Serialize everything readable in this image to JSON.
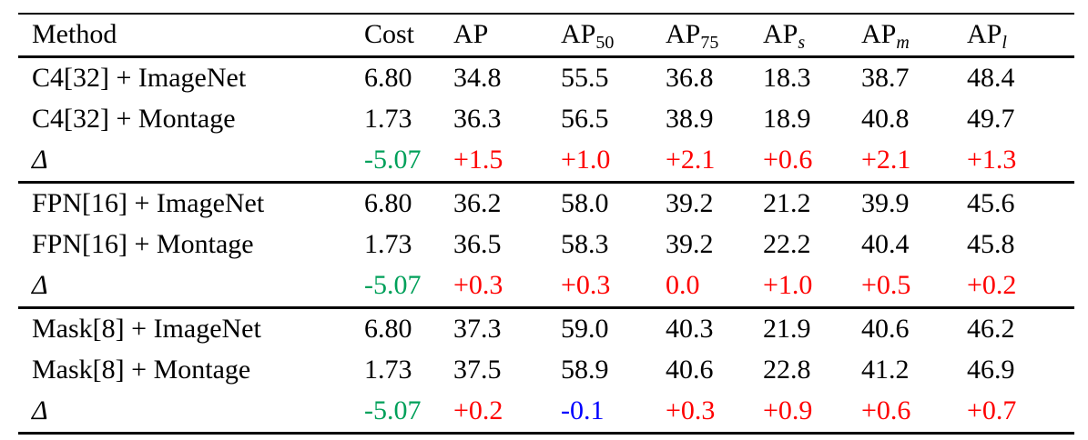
{
  "colors": {
    "black": "#000000",
    "red": "#fe0000",
    "green": "#00a05a",
    "blue": "#0000ff"
  },
  "table": {
    "columns": [
      {
        "label": "Method"
      },
      {
        "label": "Cost"
      },
      {
        "label": "AP"
      },
      {
        "label": "AP",
        "sub": "50",
        "sub_style": "normal"
      },
      {
        "label": "AP",
        "sub": "75",
        "sub_style": "normal"
      },
      {
        "label": "AP",
        "sub": "s",
        "sub_style": "italic"
      },
      {
        "label": "AP",
        "sub": "m",
        "sub_style": "italic"
      },
      {
        "label": "AP",
        "sub": "l",
        "sub_style": "italic"
      }
    ],
    "groups": [
      {
        "rows": [
          {
            "method": "C4[32] + ImageNet",
            "values": [
              "6.80",
              "34.8",
              "55.5",
              "36.8",
              "18.3",
              "38.7",
              "48.4"
            ]
          },
          {
            "method": "C4[32] + Montage",
            "values": [
              "1.73",
              "36.3",
              "56.5",
              "38.9",
              "18.9",
              "40.8",
              "49.7"
            ]
          },
          {
            "method": "Δ",
            "is_delta": true,
            "values": [
              "-5.07",
              "+1.5",
              "+1.0",
              "+2.1",
              "+0.6",
              "+2.1",
              "+1.3"
            ],
            "value_colors": [
              "green",
              "red",
              "red",
              "red",
              "red",
              "red",
              "red"
            ]
          }
        ]
      },
      {
        "rows": [
          {
            "method": "FPN[16] + ImageNet",
            "values": [
              "6.80",
              "36.2",
              "58.0",
              "39.2",
              "21.2",
              "39.9",
              "45.6"
            ]
          },
          {
            "method": "FPN[16] + Montage",
            "values": [
              "1.73",
              "36.5",
              "58.3",
              "39.2",
              "22.2",
              "40.4",
              "45.8"
            ]
          },
          {
            "method": "Δ",
            "is_delta": true,
            "values": [
              "-5.07",
              "+0.3",
              "+0.3",
              "0.0",
              "+1.0",
              "+0.5",
              "+0.2"
            ],
            "value_colors": [
              "green",
              "red",
              "red",
              "red",
              "red",
              "red",
              "red"
            ]
          }
        ]
      },
      {
        "rows": [
          {
            "method": "Mask[8] + ImageNet",
            "values": [
              "6.80",
              "37.3",
              "59.0",
              "40.3",
              "21.9",
              "40.6",
              "46.2"
            ]
          },
          {
            "method": "Mask[8] + Montage",
            "values": [
              "1.73",
              "37.5",
              "58.9",
              "40.6",
              "22.8",
              "41.2",
              "46.9"
            ]
          },
          {
            "method": "Δ",
            "is_delta": true,
            "values": [
              "-5.07",
              "+0.2",
              "-0.1",
              "+0.3",
              "+0.9",
              "+0.6",
              "+0.7"
            ],
            "value_colors": [
              "green",
              "red",
              "blue",
              "red",
              "red",
              "red",
              "red"
            ]
          }
        ]
      }
    ]
  }
}
